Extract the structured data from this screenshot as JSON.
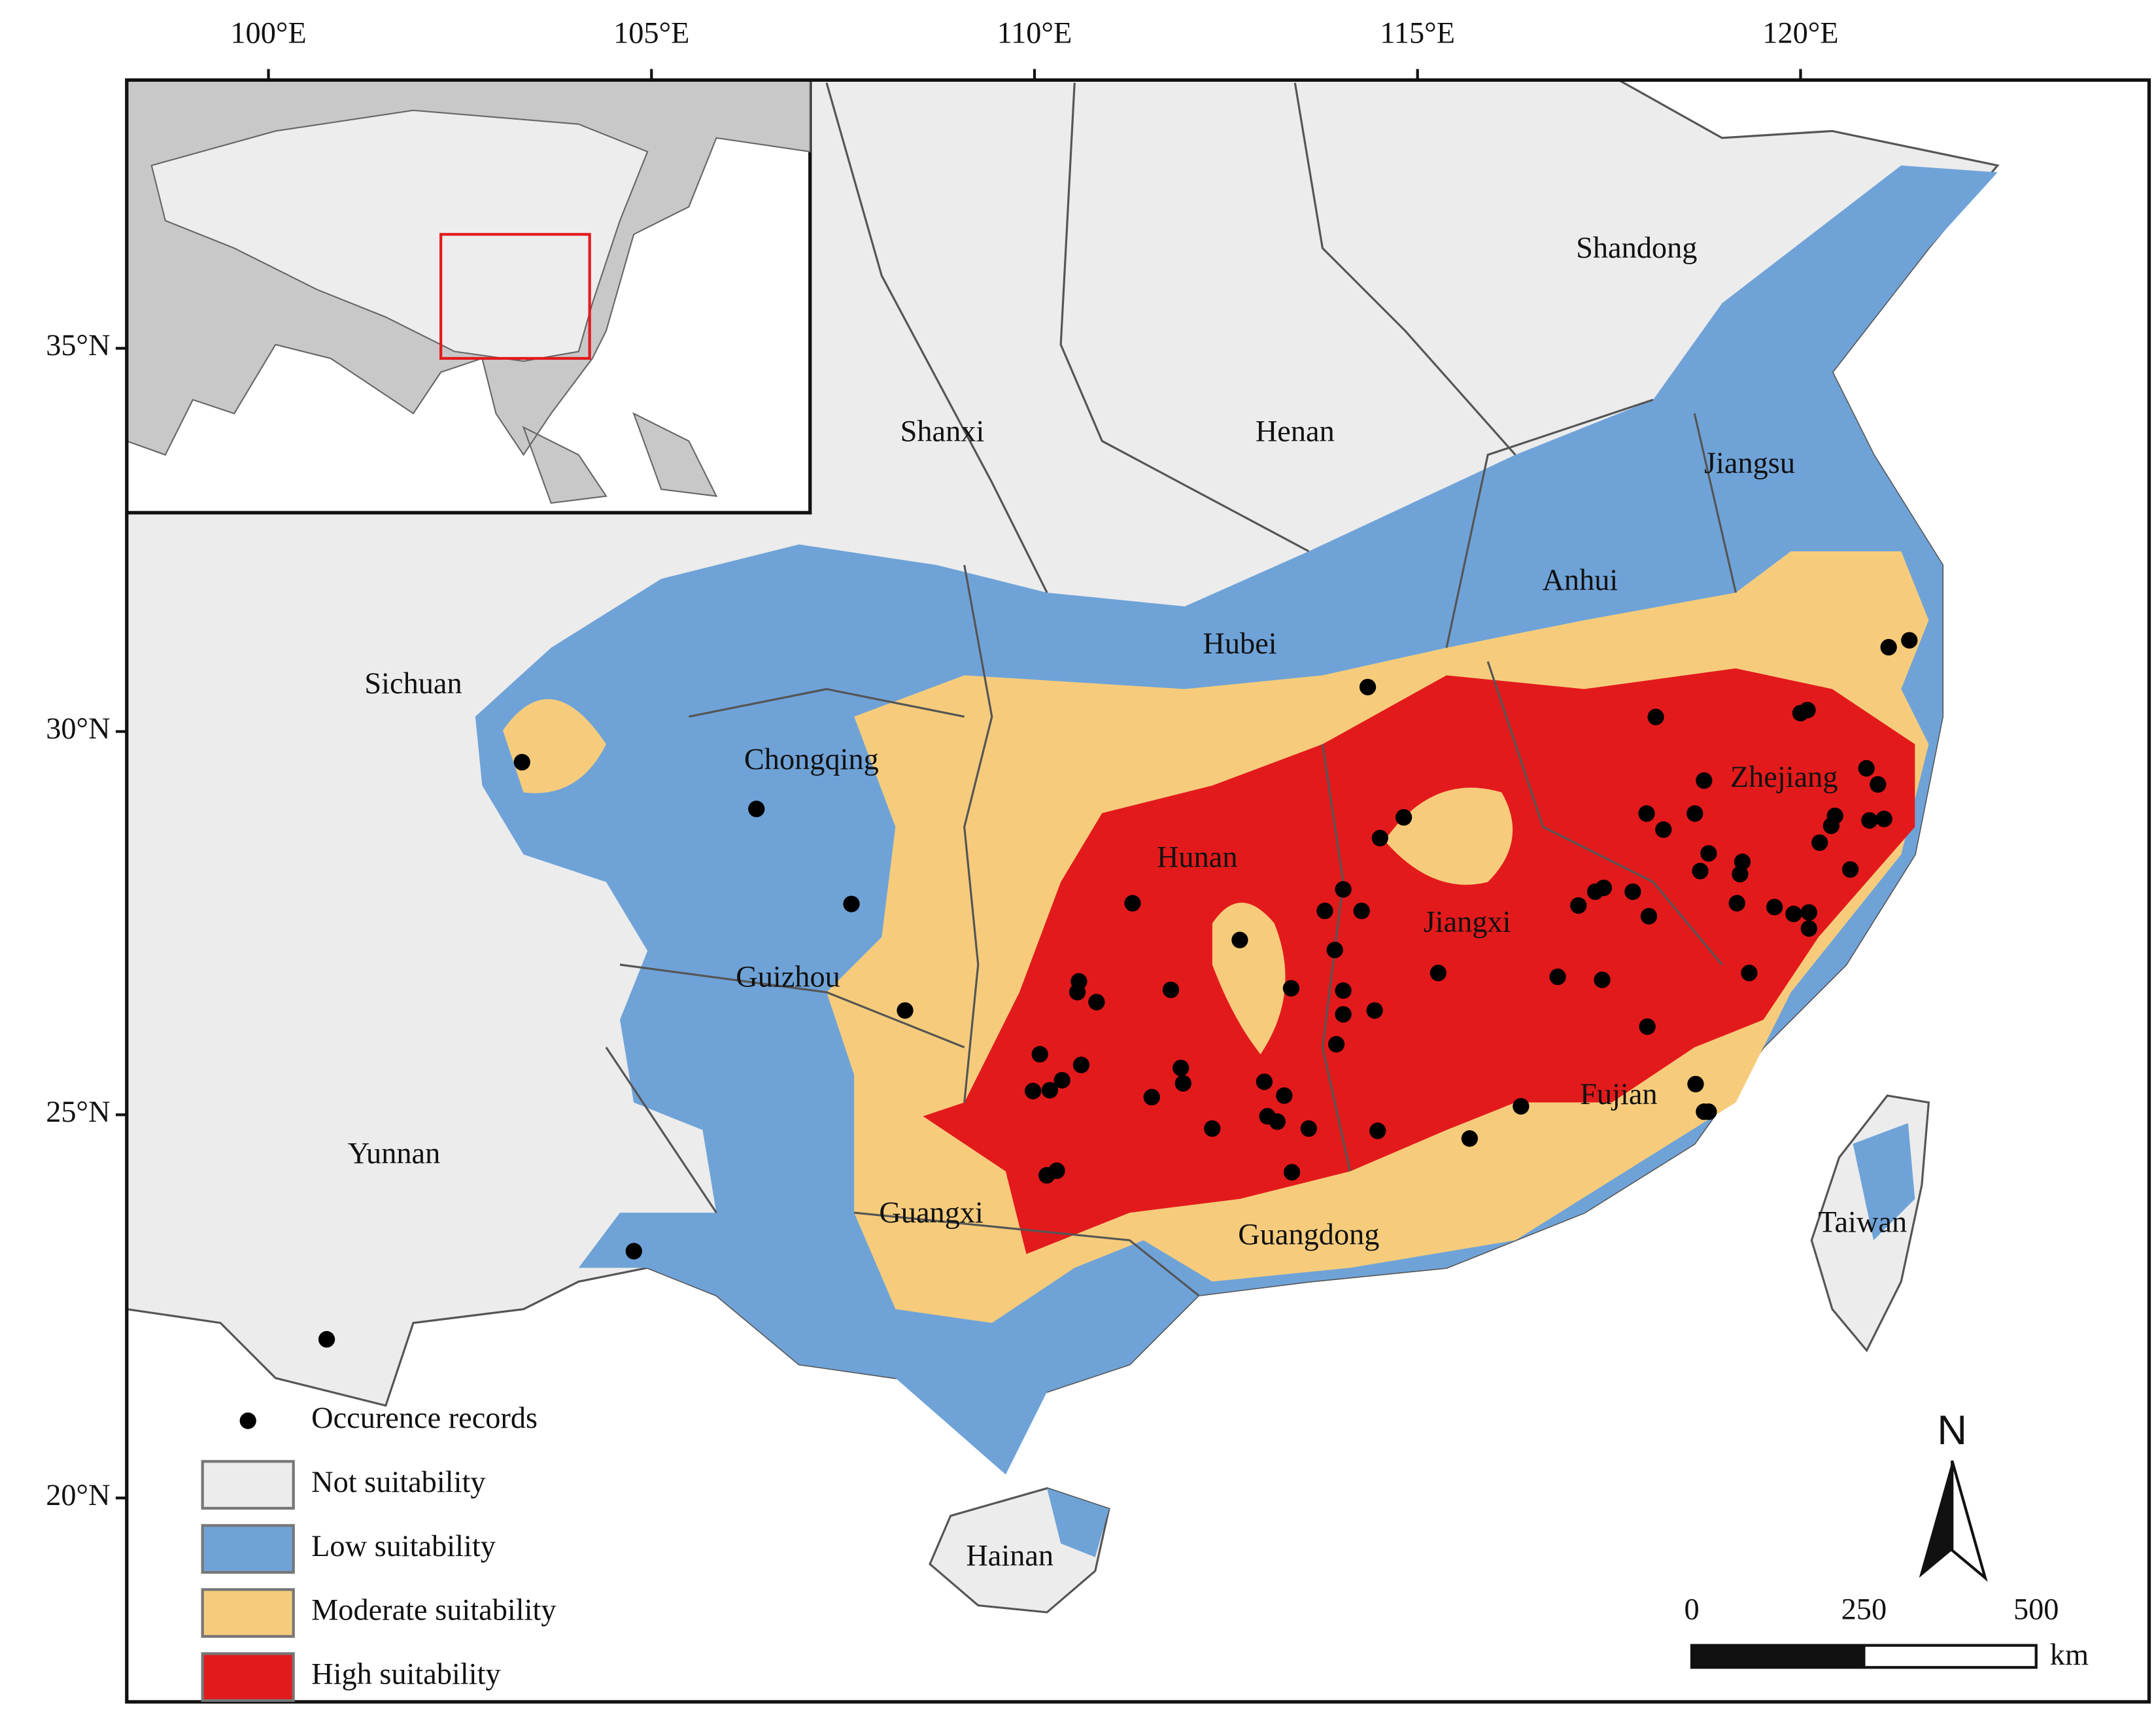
{
  "map": {
    "xlim": [
      98.15,
      124.55
    ],
    "ylim": [
      17.34,
      38.5
    ],
    "xticks": [
      {
        "value": 100,
        "label": "100°E"
      },
      {
        "value": 105,
        "label": "105°E"
      },
      {
        "value": 110,
        "label": "110°E"
      },
      {
        "value": 115,
        "label": "115°E"
      },
      {
        "value": 120,
        "label": "120°E"
      }
    ],
    "yticks": [
      {
        "value": 35,
        "label": "35°N"
      },
      {
        "value": 30,
        "label": "30°N"
      },
      {
        "value": 25,
        "label": "25°N"
      },
      {
        "value": 20,
        "label": "20°N"
      }
    ],
    "provinces": [
      "Shandong",
      "Shanxi",
      "Henan",
      "Jiangsu",
      "Anhui",
      "Hubei",
      "Sichuan",
      "Chongqing",
      "Zhejiang",
      "Hunan",
      "Jiangxi",
      "Guizhou",
      "Fujian",
      "Yunnan",
      "Guangxi",
      "Guangdong",
      "Taiwan",
      "Hainan"
    ],
    "legend": [
      {
        "label": "Occurence records",
        "color": "#000000"
      },
      {
        "label": "Not suitability",
        "color": "#ececec"
      },
      {
        "label": "Low suitability",
        "color": "#6fa3d8"
      },
      {
        "label": "Moderate suitability",
        "color": "#f6cc7c"
      },
      {
        "label": "High suitability",
        "color": "#e31a1c"
      }
    ],
    "north": "N",
    "scale_bar": {
      "ticks": [
        0,
        250,
        500
      ],
      "unit": "km"
    },
    "occurrences": [
      [
        103.31,
        29.6
      ],
      [
        106.37,
        28.99
      ],
      [
        107.61,
        27.75
      ],
      [
        108.31,
        26.36
      ],
      [
        104.77,
        23.22
      ],
      [
        100.76,
        22.07
      ],
      [
        114.35,
        30.58
      ],
      [
        114.82,
        28.88
      ],
      [
        114.51,
        28.61
      ],
      [
        111.28,
        27.76
      ],
      [
        112.68,
        27.28
      ],
      [
        111.78,
        26.63
      ],
      [
        113.35,
        26.65
      ],
      [
        113.79,
        27.66
      ],
      [
        114.03,
        27.94
      ],
      [
        114.27,
        27.66
      ],
      [
        113.92,
        27.15
      ],
      [
        114.03,
        26.62
      ],
      [
        114.03,
        26.31
      ],
      [
        114.44,
        26.36
      ],
      [
        113.94,
        25.92
      ],
      [
        115.27,
        26.85
      ],
      [
        110.58,
        26.74
      ],
      [
        110.56,
        26.6
      ],
      [
        110.81,
        26.47
      ],
      [
        110.07,
        25.79
      ],
      [
        110.61,
        25.65
      ],
      [
        110.36,
        25.45
      ],
      [
        110.2,
        25.32
      ],
      [
        109.98,
        25.31
      ],
      [
        111.91,
        25.61
      ],
      [
        111.94,
        25.41
      ],
      [
        111.53,
        25.23
      ],
      [
        113.0,
        25.43
      ],
      [
        113.26,
        25.25
      ],
      [
        113.04,
        24.98
      ],
      [
        113.17,
        24.91
      ],
      [
        113.58,
        24.82
      ],
      [
        112.32,
        24.82
      ],
      [
        114.48,
        24.79
      ],
      [
        113.36,
        24.25
      ],
      [
        110.16,
        24.21
      ],
      [
        110.29,
        24.27
      ],
      [
        115.68,
        24.69
      ],
      [
        116.35,
        25.11
      ],
      [
        116.83,
        26.8
      ],
      [
        117.41,
        26.76
      ],
      [
        117.1,
        27.73
      ],
      [
        117.32,
        27.91
      ],
      [
        117.43,
        27.96
      ],
      [
        117.81,
        27.91
      ],
      [
        118.02,
        27.59
      ],
      [
        118.0,
        26.15
      ],
      [
        118.11,
        30.19
      ],
      [
        118.62,
        28.93
      ],
      [
        117.99,
        28.93
      ],
      [
        118.21,
        28.72
      ],
      [
        118.74,
        29.36
      ],
      [
        118.8,
        28.41
      ],
      [
        118.69,
        28.18
      ],
      [
        119.24,
        28.3
      ],
      [
        119.21,
        28.14
      ],
      [
        119.17,
        27.76
      ],
      [
        119.66,
        27.71
      ],
      [
        119.91,
        27.62
      ],
      [
        120.11,
        27.64
      ],
      [
        120.11,
        27.43
      ],
      [
        119.33,
        26.85
      ],
      [
        120.25,
        28.55
      ],
      [
        120.45,
        28.9
      ],
      [
        120.4,
        28.77
      ],
      [
        120.65,
        28.2
      ],
      [
        120.86,
        29.52
      ],
      [
        121.01,
        29.31
      ],
      [
        120.9,
        28.84
      ],
      [
        121.09,
        28.86
      ],
      [
        120.0,
        30.24
      ],
      [
        120.09,
        30.28
      ],
      [
        121.15,
        31.1
      ],
      [
        121.42,
        31.19
      ],
      [
        118.63,
        25.4
      ],
      [
        118.74,
        25.04
      ],
      [
        118.8,
        25.04
      ]
    ]
  }
}
